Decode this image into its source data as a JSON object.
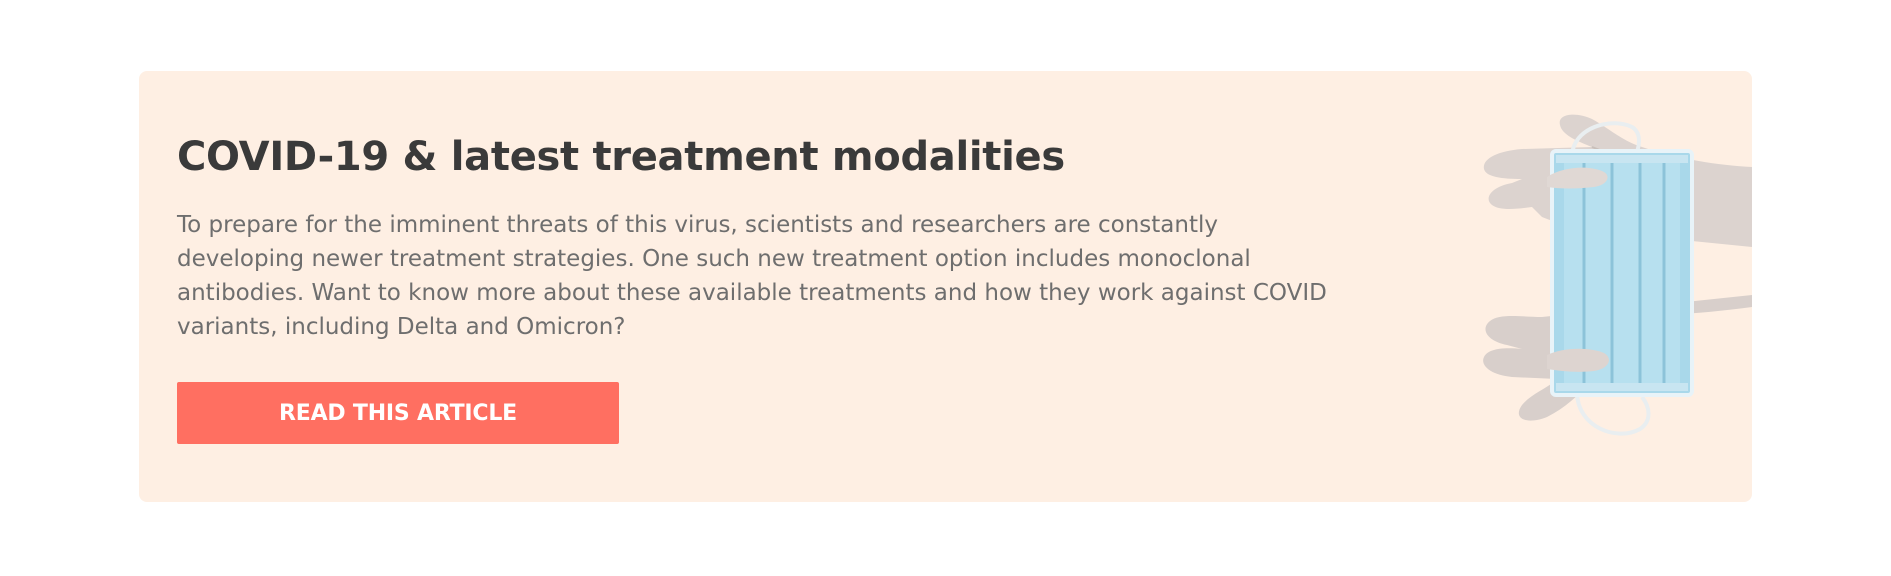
{
  "promo": {
    "title": "COVID-19 & latest treatment modalities",
    "body": "To prepare for the imminent threats of this virus, scientists and researchers are constantly developing newer treatment strategies. One such new treatment option includes monoclonal antibodies. Want to know more about these available treatments and how they work against COVID variants, including Delta and Omicron?",
    "cta_label": "READ THIS ARTICLE",
    "image_icon": "gloved-hands-holding-face-mask"
  },
  "colors": {
    "card_background": "#feefe3",
    "title": "#3a3a3a",
    "body_text": "#6e6e6e",
    "cta_background": "#ff6f61",
    "cta_text": "#ffffff"
  }
}
